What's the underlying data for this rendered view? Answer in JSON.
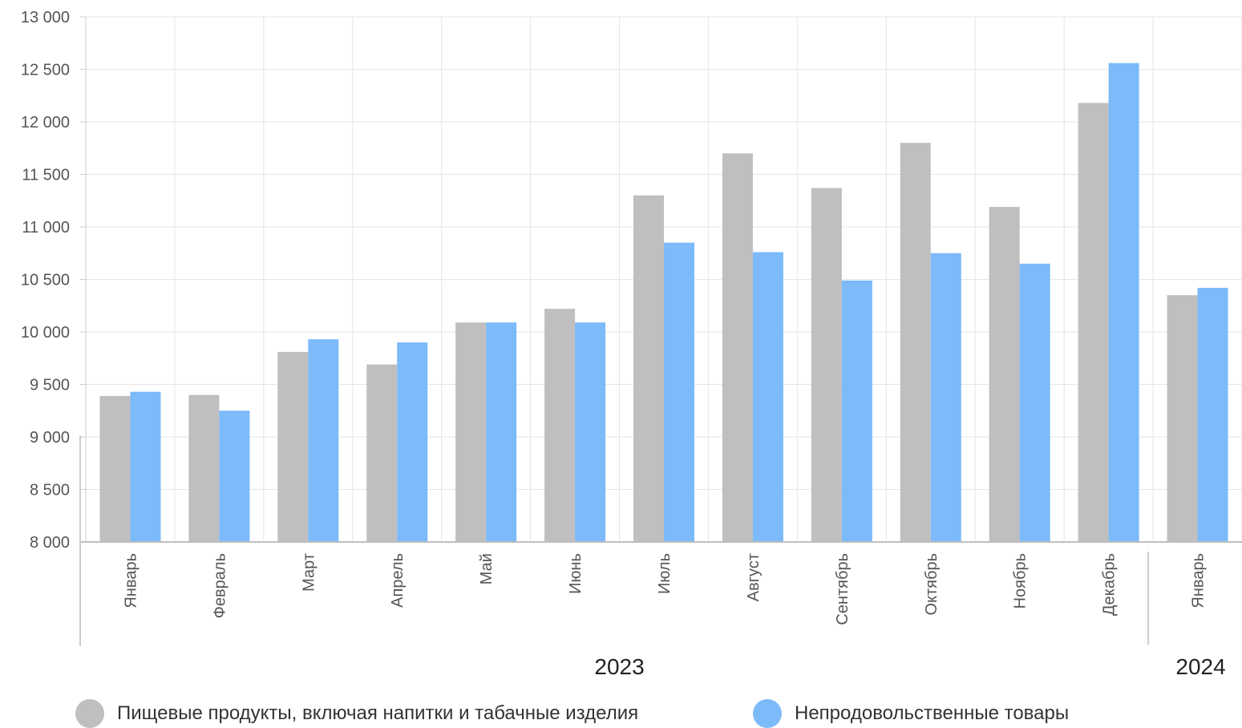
{
  "chart_data": {
    "type": "bar",
    "categories": [
      "Январь",
      "Февраль",
      "Март",
      "Апрель",
      "Май",
      "Июнь",
      "Июль",
      "Август",
      "Сентябрь",
      "Октябрь",
      "Ноябрь",
      "Декабрь",
      "Январь"
    ],
    "year_groups": [
      {
        "label": "2023",
        "count": 12
      },
      {
        "label": "2024",
        "count": 1
      }
    ],
    "series": [
      {
        "name": "Пищевые продукты, включая напитки и табачные изделия",
        "color": "#bfbfbf",
        "values": [
          9390,
          9400,
          9810,
          9690,
          10090,
          10220,
          11300,
          11700,
          11370,
          11800,
          11190,
          12180,
          10350
        ]
      },
      {
        "name": "Непродовольственные товары",
        "color": "#7cbaf9",
        "values": [
          9430,
          9250,
          9930,
          9900,
          10090,
          10090,
          10850,
          10760,
          10490,
          10750,
          10650,
          12560,
          10420
        ]
      }
    ],
    "ylim": [
      8000,
      13000
    ],
    "yticks": [
      8000,
      8500,
      9000,
      9500,
      10000,
      10500,
      11000,
      11500,
      12000,
      12500,
      13000
    ],
    "ytick_labels": [
      "8 000",
      "8 500",
      "9 000",
      "9 500",
      "10 000",
      "10 500",
      "11 000",
      "11 500",
      "12 000",
      "12 500",
      "13 000"
    ],
    "grid": true,
    "legend_position": "bottom"
  },
  "legend": {
    "food_label": "Пищевые продукты, включая напитки и табачные изделия",
    "nonfood_label": "Непродовольственные товары"
  }
}
